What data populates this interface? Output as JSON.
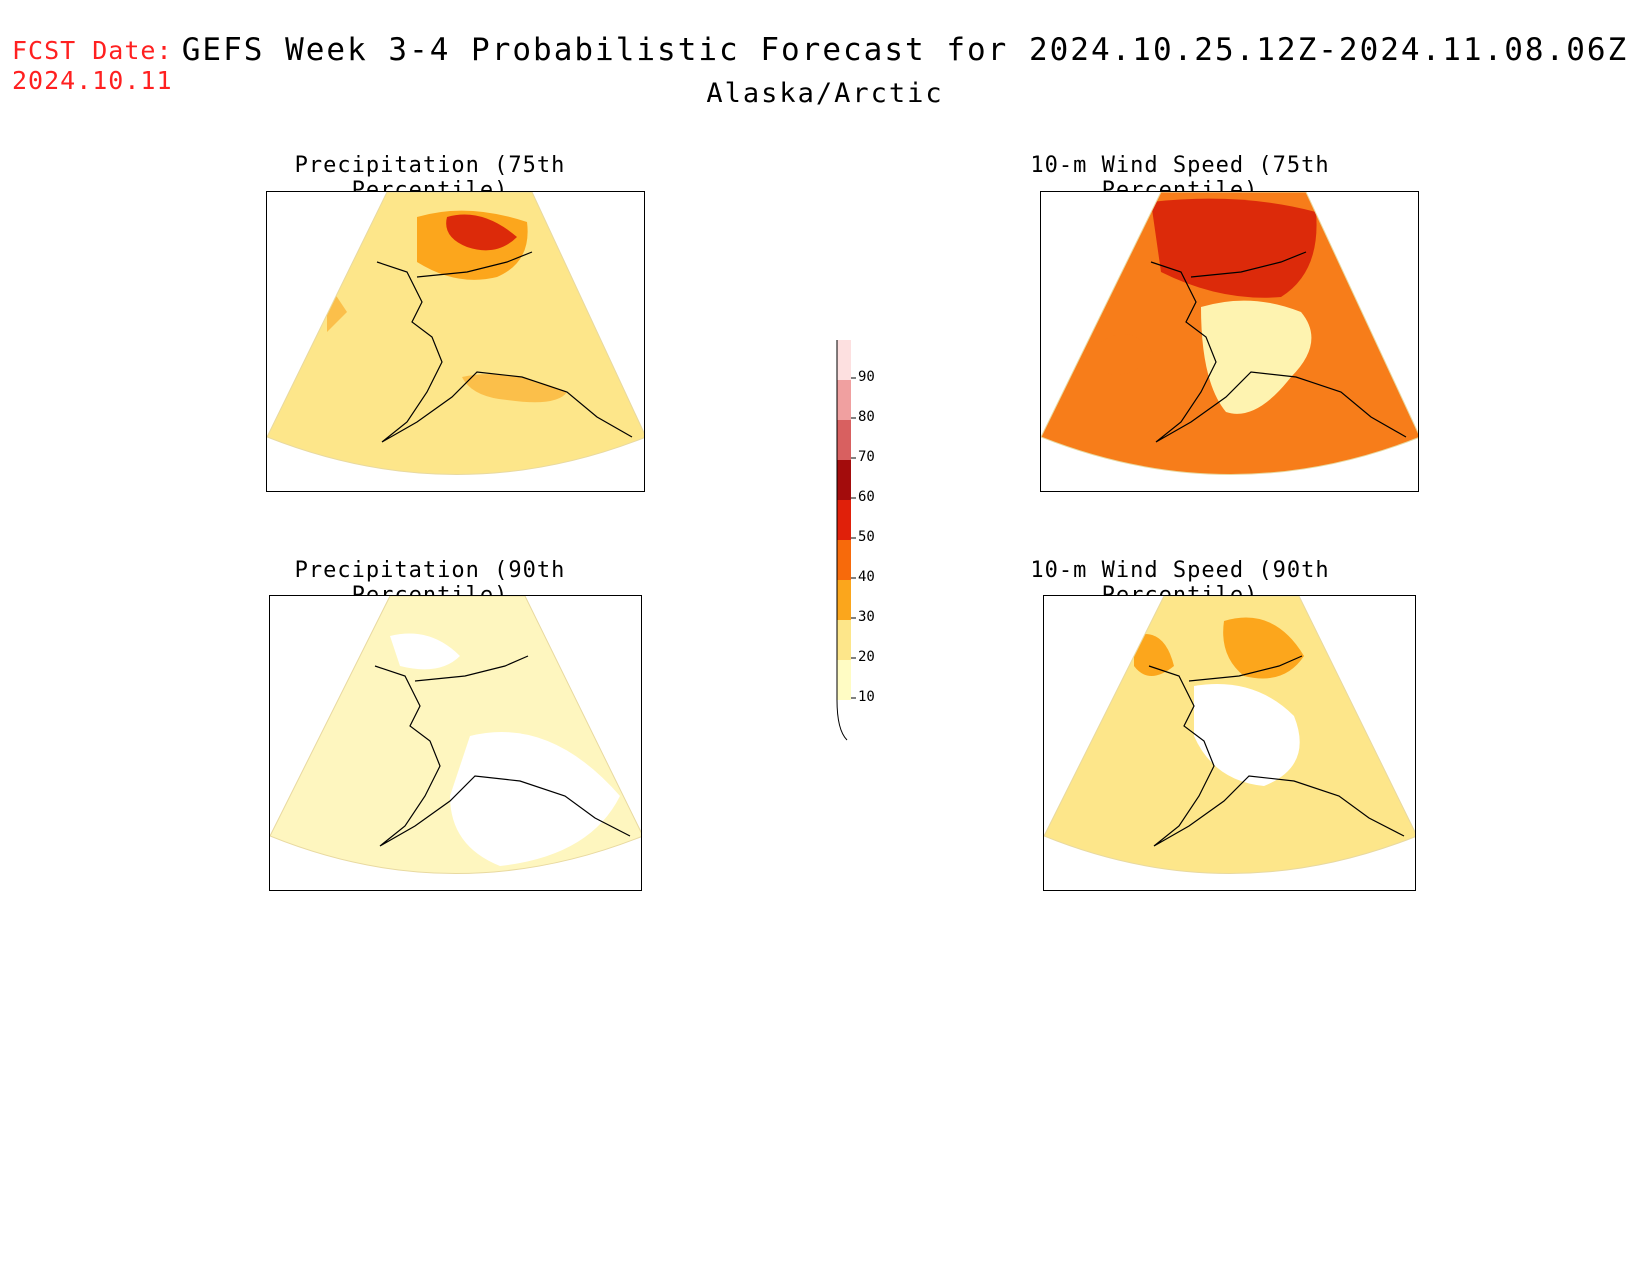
{
  "header": {
    "fcst_label": "FCST Date:",
    "fcst_date": "2024.10.11",
    "title": "GEFS Week 3-4 Probabilistic Forecast for 2024.10.25.12Z-2024.11.08.06Z",
    "region": "Alaska/Arctic"
  },
  "panels": [
    {
      "id": "precip-75",
      "title": "Precipitation (75th Percentile)",
      "base_color": "#fde68a",
      "blobs": [
        {
          "color": "#fca61c",
          "label": "north-coast high probability"
        },
        {
          "color": "#dc2a0a",
          "label": "north-coast core"
        },
        {
          "color": "#fbbf4a",
          "label": "southern coast band"
        }
      ]
    },
    {
      "id": "wind-75",
      "title": "10-m Wind Speed (75th Percentile)",
      "base_color": "#f77d1a",
      "blobs": [
        {
          "color": "#dc2a0a",
          "label": "north sector"
        },
        {
          "color": "#fef3b0",
          "label": "interior lower probability"
        }
      ]
    },
    {
      "id": "precip-90",
      "title": "Precipitation (90th Percentile)",
      "base_color": "#fef6bf",
      "blobs": [
        {
          "color": "#ffffff",
          "label": "no-probability areas"
        }
      ]
    },
    {
      "id": "wind-90",
      "title": "10-m Wind Speed (90th Percentile)",
      "base_color": "#fde68a",
      "blobs": [
        {
          "color": "#fca61c",
          "label": "north sector"
        },
        {
          "color": "#ffffff",
          "label": "interior no-probability"
        }
      ]
    }
  ],
  "colorbar": {
    "levels": [
      10,
      20,
      30,
      40,
      50,
      60,
      70,
      80,
      90
    ],
    "colors": [
      "#fffcc4",
      "#fde68a",
      "#fba61c",
      "#f76a0b",
      "#e0200a",
      "#a30c0c",
      "#d86060",
      "#f0a0a0",
      "#fde0e0"
    ],
    "labels": [
      "10",
      "20",
      "30",
      "40",
      "50",
      "60",
      "70",
      "80",
      "90"
    ]
  }
}
